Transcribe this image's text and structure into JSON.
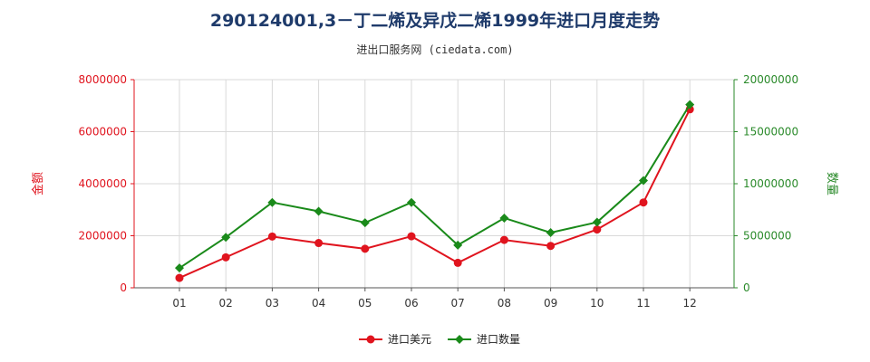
{
  "chart_data": {
    "type": "line",
    "title": "290124001,3－丁二烯及异戊二烯1999年进口月度走势",
    "subtitle": "进出口服务网 (ciedata.com)",
    "categories": [
      "01",
      "02",
      "03",
      "04",
      "05",
      "06",
      "07",
      "08",
      "09",
      "10",
      "11",
      "12"
    ],
    "y_left": {
      "label": "金额",
      "ylim": [
        0,
        8000000
      ],
      "ticks": [
        "0",
        "2000000",
        "4000000",
        "6000000",
        "8000000"
      ],
      "color": "#e0141e"
    },
    "y_right": {
      "label": "数量",
      "ylim": [
        0,
        20000000
      ],
      "ticks": [
        "0",
        "5000000",
        "10000000",
        "15000000",
        "20000000"
      ],
      "color": "#2a8a2a"
    },
    "series": [
      {
        "name": "进口美元",
        "axis": "left",
        "color": "#e0141e",
        "marker": "circle",
        "values": [
          380000,
          1170000,
          1970000,
          1720000,
          1500000,
          1980000,
          960000,
          1840000,
          1610000,
          2240000,
          3280000,
          6860000
        ]
      },
      {
        "name": "进口数量",
        "axis": "right",
        "color": "#1a8a1a",
        "marker": "diamond",
        "values": [
          1900000,
          4850000,
          8200000,
          7350000,
          6250000,
          8200000,
          4100000,
          6700000,
          5300000,
          6300000,
          10300000,
          17600000
        ]
      }
    ],
    "grid": true,
    "legend": "bottom"
  }
}
